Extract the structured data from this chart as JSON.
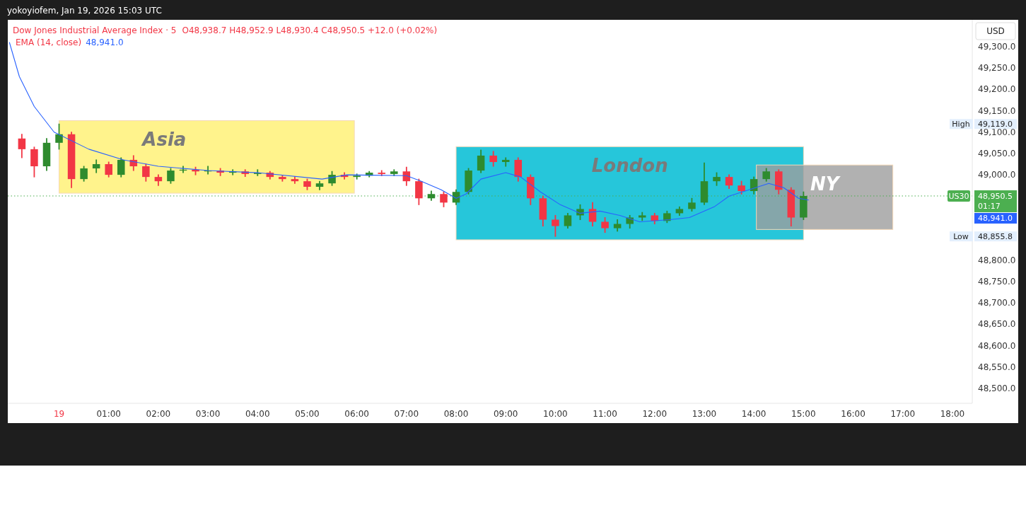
{
  "chart_data": {
    "type": "candlestick",
    "title": "Dow Jones Industrial Average Index · 5",
    "subtitle": "O48,938.7 H48,952.9 L48,930.4 C48,950.5 +12.0 (+0.02%)",
    "x": [
      "2026-01-18T23:15",
      "2026-01-18T23:30",
      "2026-01-18T23:45",
      "2026-01-19T00:00",
      "2026-01-19T00:15",
      "2026-01-19T00:30",
      "2026-01-19T00:45",
      "2026-01-19T01:00",
      "2026-01-19T01:15",
      "2026-01-19T01:30",
      "2026-01-19T01:45",
      "2026-01-19T02:00",
      "2026-01-19T02:15",
      "2026-01-19T02:30",
      "2026-01-19T02:45",
      "2026-01-19T03:00",
      "2026-01-19T03:15",
      "2026-01-19T03:30",
      "2026-01-19T03:45",
      "2026-01-19T04:00",
      "2026-01-19T04:15",
      "2026-01-19T04:30",
      "2026-01-19T04:45",
      "2026-01-19T05:00",
      "2026-01-19T05:15",
      "2026-01-19T05:30",
      "2026-01-19T05:45",
      "2026-01-19T06:00",
      "2026-01-19T06:15",
      "2026-01-19T06:30",
      "2026-01-19T06:45",
      "2026-01-19T07:00",
      "2026-01-19T07:15",
      "2026-01-19T07:30",
      "2026-01-19T07:45",
      "2026-01-19T08:00",
      "2026-01-19T08:15",
      "2026-01-19T08:30",
      "2026-01-19T08:45",
      "2026-01-19T09:00",
      "2026-01-19T09:15",
      "2026-01-19T09:30",
      "2026-01-19T09:45",
      "2026-01-19T10:00",
      "2026-01-19T10:15",
      "2026-01-19T10:30",
      "2026-01-19T10:45",
      "2026-01-19T11:00",
      "2026-01-19T11:15",
      "2026-01-19T11:30",
      "2026-01-19T11:45",
      "2026-01-19T12:00",
      "2026-01-19T12:15",
      "2026-01-19T12:30",
      "2026-01-19T12:45",
      "2026-01-19T13:00",
      "2026-01-19T13:15",
      "2026-01-19T13:30",
      "2026-01-19T13:45",
      "2026-01-19T14:00",
      "2026-01-19T14:15",
      "2026-01-19T14:30",
      "2026-01-19T14:45",
      "2026-01-19T15:00"
    ],
    "ohlc": [
      [
        49085,
        49095,
        49040,
        49060
      ],
      [
        49060,
        49065,
        48995,
        49020
      ],
      [
        49020,
        49085,
        49010,
        49075
      ],
      [
        49075,
        49119,
        49060,
        49095
      ],
      [
        49095,
        49100,
        48970,
        48990
      ],
      [
        48990,
        49020,
        48985,
        49015
      ],
      [
        49015,
        49035,
        49005,
        49025
      ],
      [
        49025,
        49030,
        48995,
        49000
      ],
      [
        49000,
        49040,
        48995,
        49035
      ],
      [
        49035,
        49045,
        49010,
        49020
      ],
      [
        49020,
        49025,
        48985,
        48995
      ],
      [
        48995,
        49000,
        48975,
        48985
      ],
      [
        48985,
        49015,
        48980,
        49010
      ],
      [
        49010,
        49020,
        49005,
        49012
      ],
      [
        49012,
        49018,
        49000,
        49008
      ],
      [
        49008,
        49020,
        49002,
        49010
      ],
      [
        49010,
        49015,
        48998,
        49005
      ],
      [
        49005,
        49012,
        49000,
        49008
      ],
      [
        49008,
        49012,
        48996,
        49002
      ],
      [
        49002,
        49012,
        48998,
        49005
      ],
      [
        49005,
        49008,
        48990,
        48995
      ],
      [
        48995,
        48998,
        48985,
        48990
      ],
      [
        48990,
        48995,
        48980,
        48985
      ],
      [
        48985,
        48990,
        48965,
        48972
      ],
      [
        48972,
        48985,
        48965,
        48980
      ],
      [
        48980,
        49008,
        48975,
        49000
      ],
      [
        49000,
        49005,
        48990,
        48995
      ],
      [
        48995,
        49002,
        48990,
        48998
      ],
      [
        48998,
        49008,
        48995,
        49005
      ],
      [
        49005,
        49010,
        48998,
        49002
      ],
      [
        49002,
        49012,
        48998,
        49008
      ],
      [
        49008,
        49018,
        48975,
        48985
      ],
      [
        48985,
        48990,
        48930,
        48945
      ],
      [
        48945,
        48962,
        48940,
        48955
      ],
      [
        48955,
        48960,
        48925,
        48935
      ],
      [
        48935,
        48965,
        48930,
        48960
      ],
      [
        48960,
        49015,
        48955,
        49010
      ],
      [
        49010,
        49058,
        49005,
        49045
      ],
      [
        49045,
        49055,
        49020,
        49030
      ],
      [
        49030,
        49040,
        49020,
        49035
      ],
      [
        49035,
        49040,
        48985,
        48995
      ],
      [
        48995,
        49000,
        48930,
        48945
      ],
      [
        48945,
        48950,
        48880,
        48895
      ],
      [
        48895,
        48905,
        48855.8,
        48880
      ],
      [
        48880,
        48910,
        48875,
        48905
      ],
      [
        48905,
        48930,
        48895,
        48920
      ],
      [
        48920,
        48935,
        48880,
        48890
      ],
      [
        48890,
        48900,
        48865,
        48875
      ],
      [
        48875,
        48895,
        48868,
        48885
      ],
      [
        48885,
        48905,
        48875,
        48900
      ],
      [
        48900,
        48912,
        48893,
        48905
      ],
      [
        48905,
        48910,
        48885,
        48892
      ],
      [
        48892,
        48915,
        48888,
        48910
      ],
      [
        48910,
        48925,
        48905,
        48920
      ],
      [
        48920,
        48945,
        48915,
        48935
      ],
      [
        48935,
        49028,
        48930,
        48985
      ],
      [
        48985,
        49005,
        48975,
        48995
      ],
      [
        48995,
        49000,
        48968,
        48975
      ],
      [
        48975,
        48985,
        48955,
        48962
      ],
      [
        48962,
        48995,
        48955,
        48990
      ],
      [
        48990,
        49015,
        48985,
        49008
      ],
      [
        49008,
        49012,
        48955,
        48965
      ],
      [
        48965,
        48970,
        48880,
        48900
      ],
      [
        48900,
        48960,
        48895,
        48950.5
      ]
    ],
    "series": [
      {
        "name": "EMA (14, close)",
        "type": "line",
        "color": "#2962ff",
        "x": [
          "2026-01-18T23:00",
          "2026-01-18T23:12",
          "2026-01-18T23:30",
          "2026-01-18T23:54",
          "2026-01-19T00:36",
          "2026-01-19T01:18",
          "2026-01-19T02:00",
          "2026-01-19T03:00",
          "2026-01-19T04:00",
          "2026-01-19T05:18",
          "2026-01-19T05:48",
          "2026-01-19T07:00",
          "2026-01-19T07:18",
          "2026-01-19T07:42",
          "2026-01-19T08:00",
          "2026-01-19T08:12",
          "2026-01-19T08:30",
          "2026-01-19T09:00",
          "2026-01-19T09:18",
          "2026-01-19T09:42",
          "2026-01-19T10:06",
          "2026-01-19T10:30",
          "2026-01-19T10:54",
          "2026-01-19T11:18",
          "2026-01-19T11:42",
          "2026-01-19T12:18",
          "2026-01-19T12:42",
          "2026-01-19T13:12",
          "2026-01-19T13:30",
          "2026-01-19T13:54",
          "2026-01-19T14:18",
          "2026-01-19T14:36",
          "2026-01-19T14:54",
          "2026-01-19T15:06"
        ],
        "values": [
          49310,
          49230,
          49160,
          49100,
          49060,
          49035,
          49020,
          49010,
          49005,
          48990,
          49000,
          48998,
          48985,
          48965,
          48945,
          48955,
          48990,
          49005,
          48995,
          48960,
          48930,
          48910,
          48915,
          48905,
          48890,
          48895,
          48900,
          48925,
          48950,
          48965,
          48980,
          48970,
          48945,
          48941
        ]
      }
    ],
    "xlim": [
      "2026-01-18T22:58",
      "2026-01-19T18:24"
    ],
    "ylim": [
      48465,
      49363
    ],
    "xticks": [
      {
        "value": "2026-01-19T00:00",
        "label": "19"
      },
      {
        "value": "2026-01-19T01:00",
        "label": "01:00"
      },
      {
        "value": "2026-01-19T02:00",
        "label": "02:00"
      },
      {
        "value": "2026-01-19T03:00",
        "label": "03:00"
      },
      {
        "value": "2026-01-19T04:00",
        "label": "04:00"
      },
      {
        "value": "2026-01-19T05:00",
        "label": "05:00"
      },
      {
        "value": "2026-01-19T06:00",
        "label": "06:00"
      },
      {
        "value": "2026-01-19T07:00",
        "label": "07:00"
      },
      {
        "value": "2026-01-19T08:00",
        "label": "08:00"
      },
      {
        "value": "2026-01-19T09:00",
        "label": "09:00"
      },
      {
        "value": "2026-01-19T10:00",
        "label": "10:00"
      },
      {
        "value": "2026-01-19T11:00",
        "label": "11:00"
      },
      {
        "value": "2026-01-19T12:00",
        "label": "12:00"
      },
      {
        "value": "2026-01-19T13:00",
        "label": "13:00"
      },
      {
        "value": "2026-01-19T14:00",
        "label": "14:00"
      },
      {
        "value": "2026-01-19T15:00",
        "label": "15:00"
      },
      {
        "value": "2026-01-19T16:00",
        "label": "16:00"
      },
      {
        "value": "2026-01-19T17:00",
        "label": "17:00"
      },
      {
        "value": "2026-01-19T18:00",
        "label": "18:00"
      }
    ],
    "yticks": [
      {
        "value": 48500,
        "label": "48,500.0"
      },
      {
        "value": 48550,
        "label": "48,550.0"
      },
      {
        "value": 48600,
        "label": "48,600.0"
      },
      {
        "value": 48650,
        "label": "48,650.0"
      },
      {
        "value": 48700,
        "label": "48,700.0"
      },
      {
        "value": 48750,
        "label": "48,750.0"
      },
      {
        "value": 48800,
        "label": "48,800.0"
      },
      {
        "value": 49000,
        "label": "49,000.0"
      },
      {
        "value": 49050,
        "label": "49,050.0"
      },
      {
        "value": 49100,
        "label": "49,100.0"
      },
      {
        "value": 49150,
        "label": "49,150.0"
      },
      {
        "value": 49200,
        "label": "49,200.0"
      },
      {
        "value": 49250,
        "label": "49,250.0"
      },
      {
        "value": 49300,
        "label": "49,300.0"
      }
    ],
    "bands": [
      {
        "axis": "x",
        "from": "2026-01-19T00:00",
        "to": "2026-01-19T05:57",
        "label": "Asia",
        "color": "#fff38c"
      },
      {
        "axis": "x",
        "from": "2026-01-19T08:00",
        "to": "2026-01-19T15:00",
        "label": "London",
        "color": "#26c6da"
      },
      {
        "axis": "x",
        "from": "2026-01-19T14:03",
        "to": "2026-01-19T16:48",
        "label": "NY",
        "color": "#9e9e9e"
      }
    ],
    "ref_lines": [
      {
        "axis": "y",
        "value": 48950.5,
        "label": "US30",
        "color": "#4caf50",
        "line_style": "dotted"
      }
    ],
    "annotations": [
      "yokoyiofem, Jan 19, 2026 15:03 UTC",
      "USD",
      "High",
      "49,119.0",
      "48,950.5",
      "01:17",
      "48,941.0",
      "Low",
      "48,855.8"
    ],
    "legend": "top left",
    "grid": false
  }
}
